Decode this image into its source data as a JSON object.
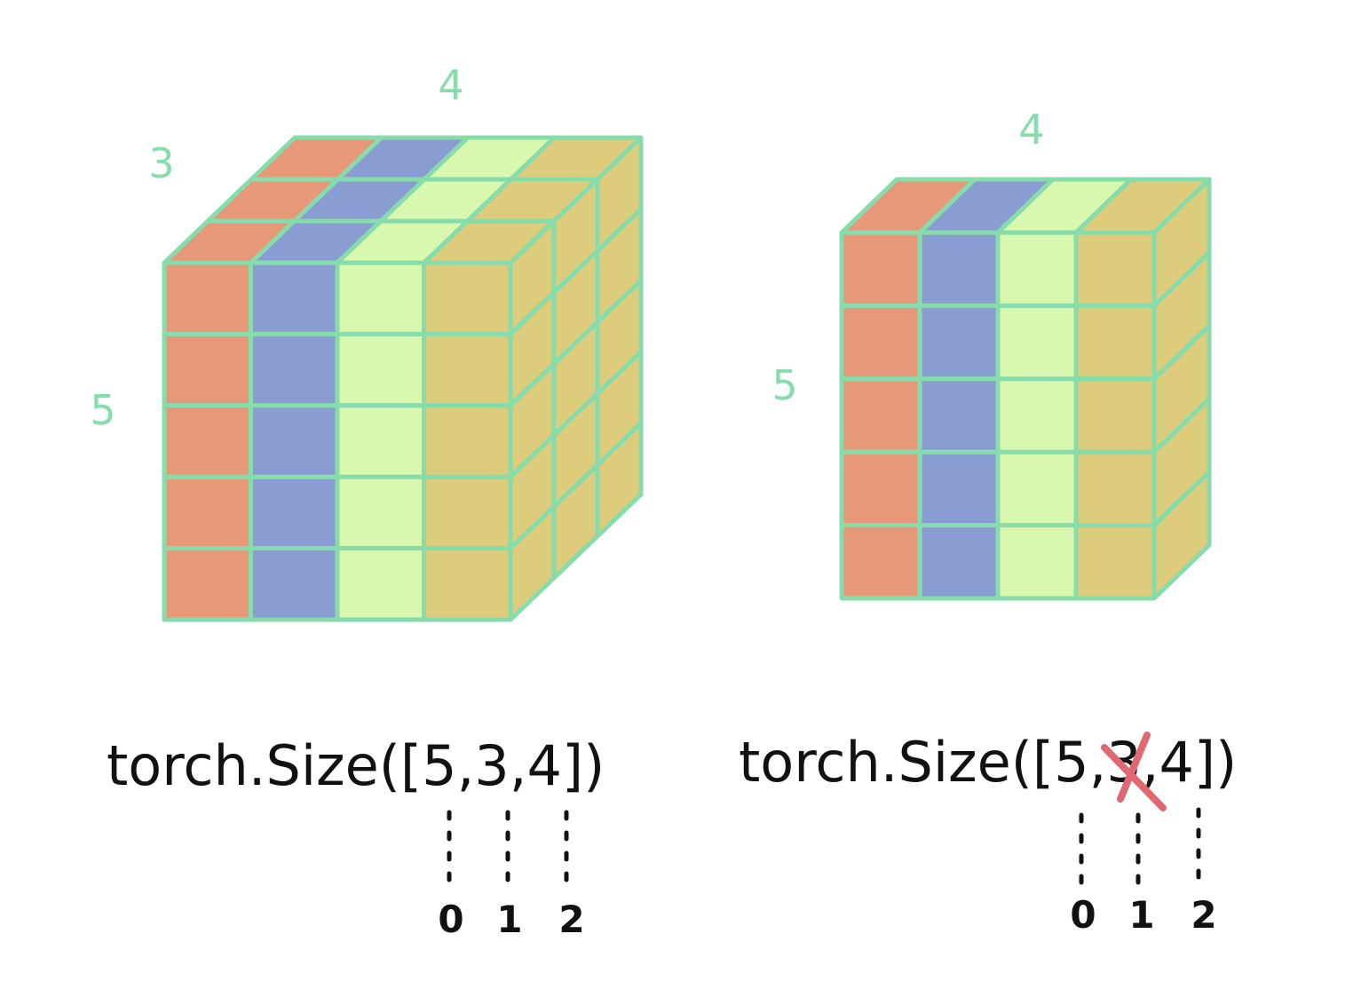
{
  "colors": {
    "edge": "#86dcaa",
    "col1": "#e69878",
    "col2": "#8a9dd2",
    "col3": "#d8f8b0",
    "col4": "#dccc7c",
    "text": "#111111",
    "strike": "#e06870"
  },
  "left": {
    "depth_label": "3",
    "width_label": "4",
    "height_label": "5",
    "size_prefix": "torch.Size([",
    "dims": [
      "5",
      "3",
      "4"
    ],
    "size_suffix": "])",
    "indices": [
      "0",
      "1",
      "2"
    ]
  },
  "right": {
    "width_label": "4",
    "height_label": "5",
    "size_prefix": "torch.Size([",
    "dims": [
      "5",
      "3",
      "4"
    ],
    "crossed_dim": 1,
    "size_suffix": "])",
    "indices": [
      "0",
      "1",
      "2"
    ]
  }
}
